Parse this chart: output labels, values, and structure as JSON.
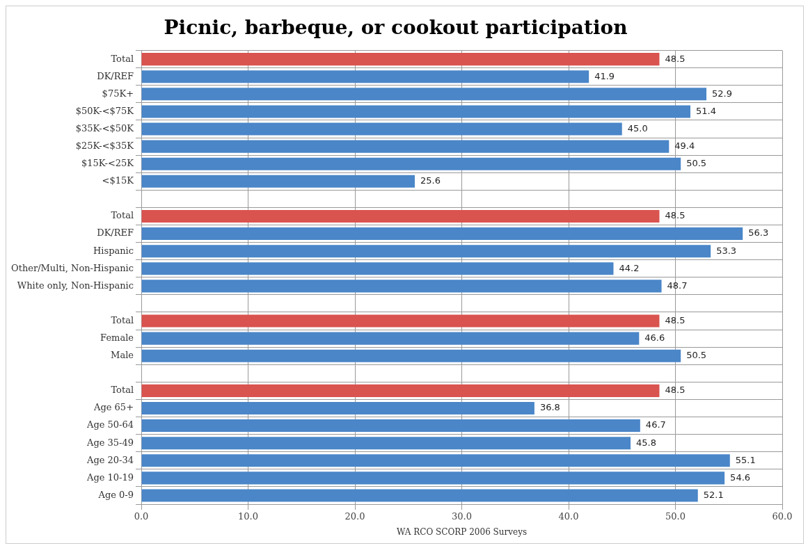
{
  "chart_data": {
    "type": "bar",
    "orientation": "horizontal",
    "title": "Picnic, barbeque, or cookout participation",
    "xlabel": "WA RCO SCORP 2006 Surveys",
    "categories": [
      "Total",
      "DK/REF",
      "$75K+",
      "$50K-<$75K",
      "$35K-<$50K",
      "$25K-<$35K",
      "$15K-<25K",
      "<$15K",
      null,
      "Total",
      "DK/REF",
      "Hispanic",
      "Other/Multi, Non-Hispanic",
      "White only, Non-Hispanic",
      null,
      "Total",
      "Female",
      "Male",
      null,
      "Total",
      "Age 65+",
      "Age 50-64",
      "Age 35-49",
      "Age 20-34",
      "Age 10-19",
      "Age 0-9"
    ],
    "values": [
      48.5,
      41.9,
      52.9,
      51.4,
      45.0,
      49.4,
      50.5,
      25.6,
      null,
      48.5,
      56.3,
      53.3,
      44.2,
      48.7,
      null,
      48.5,
      46.6,
      50.5,
      null,
      48.5,
      36.8,
      46.7,
      45.8,
      55.1,
      54.6,
      52.1
    ],
    "value_labels": [
      "48.5",
      "41.9",
      "52.9",
      "51.4",
      "45.0",
      "49.4",
      "50.5",
      "25.6",
      null,
      "48.5",
      "56.3",
      "53.3",
      "44.2",
      "48.7",
      null,
      "48.5",
      "46.6",
      "50.5",
      null,
      "48.5",
      "36.8",
      "46.7",
      "45.8",
      "55.1",
      "54.6",
      "52.1"
    ],
    "colors": [
      "#d9534f",
      "#4a86c8",
      "#4a86c8",
      "#4a86c8",
      "#4a86c8",
      "#4a86c8",
      "#4a86c8",
      "#4a86c8",
      "#4a86c8",
      "#d9534f",
      "#4a86c8",
      "#4a86c8",
      "#4a86c8",
      "#4a86c8",
      "#4a86c8",
      "#d9534f",
      "#4a86c8",
      "#4a86c8",
      "#4a86c8",
      "#d9534f",
      "#4a86c8",
      "#4a86c8",
      "#4a86c8",
      "#4a86c8",
      "#4a86c8",
      "#4a86c8"
    ],
    "xlim": [
      0,
      60
    ],
    "xticks": [
      {
        "value": 0,
        "label": "0.0"
      },
      {
        "value": 10,
        "label": "10.0"
      },
      {
        "value": 20,
        "label": "20.0"
      },
      {
        "value": 30,
        "label": "30.0"
      },
      {
        "value": 40,
        "label": "40.0"
      },
      {
        "value": 50,
        "label": "50.0"
      },
      {
        "value": 60,
        "label": "60.0"
      }
    ],
    "grid": true
  }
}
